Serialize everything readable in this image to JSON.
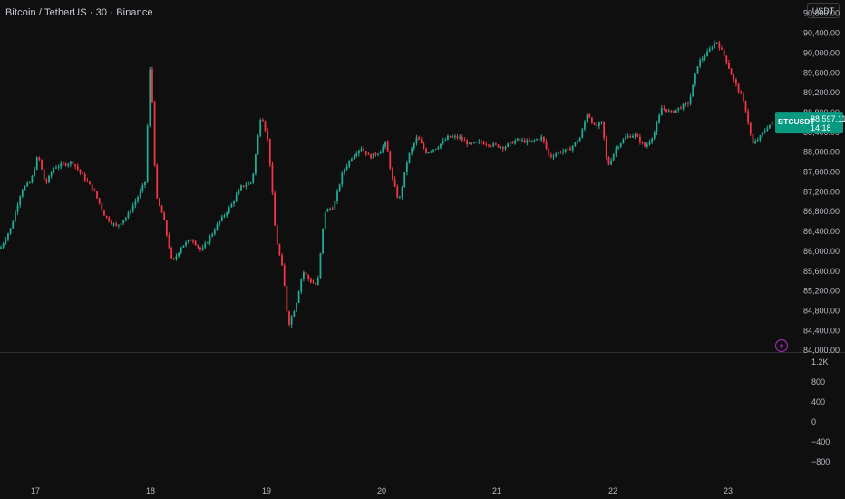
{
  "header": {
    "title": "Bitcoin / TetherUS · 30 · Binance",
    "currency": "USDT"
  },
  "price_badge": {
    "symbol": "BTCUSDT",
    "price": "88,597.11",
    "countdown": "14:18",
    "color": "#089981"
  },
  "colors": {
    "up": "#22ab94",
    "down": "#f23645",
    "background": "#0f0f0f",
    "alert_icon": "#9c27b0"
  },
  "icons": {
    "alert": "lightning-bolt-icon"
  },
  "chart_data": {
    "type": "candlestick",
    "symbol": "BTCUSDT",
    "interval": "30",
    "x_ticks": [
      "17",
      "18",
      "19",
      "20",
      "21",
      "22",
      "23"
    ],
    "price_ticks": [
      "90,800.00",
      "90,400.00",
      "90,000.00",
      "89,600.00",
      "89,200.00",
      "88,800.00",
      "88,400.00",
      "88,000.00",
      "87,600.00",
      "87,200.00",
      "86,800.00",
      "86,400.00",
      "86,000.00",
      "85,600.00",
      "85,200.00",
      "84,800.00",
      "84,400.00",
      "84,000.00"
    ],
    "volume_ticks": [
      "1.2K",
      "800",
      "400",
      "0",
      "−400",
      "−800"
    ],
    "price_range": [
      83930,
      91070
    ],
    "last_price": 88597.11,
    "path": [
      [
        0,
        86050
      ],
      [
        12,
        86470
      ],
      [
        24,
        87250
      ],
      [
        34,
        87400
      ],
      [
        42,
        87950
      ],
      [
        50,
        87350
      ],
      [
        60,
        87700
      ],
      [
        80,
        87800
      ],
      [
        92,
        87500
      ],
      [
        104,
        87200
      ],
      [
        116,
        86700
      ],
      [
        128,
        86500
      ],
      [
        140,
        86700
      ],
      [
        152,
        87100
      ],
      [
        160,
        87400
      ],
      [
        166,
        89950
      ],
      [
        172,
        87100
      ],
      [
        180,
        86700
      ],
      [
        190,
        85750
      ],
      [
        200,
        86100
      ],
      [
        212,
        86250
      ],
      [
        222,
        86000
      ],
      [
        232,
        86300
      ],
      [
        242,
        86600
      ],
      [
        254,
        86900
      ],
      [
        266,
        87300
      ],
      [
        278,
        87400
      ],
      [
        288,
        88800
      ],
      [
        296,
        88200
      ],
      [
        304,
        86300
      ],
      [
        312,
        85600
      ],
      [
        318,
        84500
      ],
      [
        326,
        84900
      ],
      [
        334,
        85600
      ],
      [
        342,
        85400
      ],
      [
        350,
        85300
      ],
      [
        358,
        86800
      ],
      [
        368,
        86900
      ],
      [
        378,
        87600
      ],
      [
        388,
        87900
      ],
      [
        398,
        88100
      ],
      [
        408,
        87900
      ],
      [
        418,
        88000
      ],
      [
        426,
        88200
      ],
      [
        432,
        87500
      ],
      [
        440,
        87000
      ],
      [
        450,
        87900
      ],
      [
        460,
        88300
      ],
      [
        470,
        88000
      ],
      [
        482,
        88100
      ],
      [
        494,
        88300
      ],
      [
        506,
        88300
      ],
      [
        518,
        88150
      ],
      [
        530,
        88200
      ],
      [
        542,
        88150
      ],
      [
        556,
        88100
      ],
      [
        570,
        88250
      ],
      [
        584,
        88200
      ],
      [
        598,
        88300
      ],
      [
        606,
        87900
      ],
      [
        616,
        88000
      ],
      [
        628,
        88050
      ],
      [
        640,
        88300
      ],
      [
        648,
        88800
      ],
      [
        656,
        88500
      ],
      [
        664,
        88600
      ],
      [
        670,
        87700
      ],
      [
        680,
        88100
      ],
      [
        690,
        88300
      ],
      [
        700,
        88350
      ],
      [
        712,
        88100
      ],
      [
        722,
        88400
      ],
      [
        730,
        88900
      ],
      [
        740,
        88800
      ],
      [
        750,
        88900
      ],
      [
        760,
        89000
      ],
      [
        770,
        89800
      ],
      [
        780,
        90000
      ],
      [
        790,
        90250
      ],
      [
        800,
        89900
      ],
      [
        808,
        89500
      ],
      [
        816,
        89200
      ],
      [
        822,
        88900
      ],
      [
        830,
        88150
      ],
      [
        838,
        88300
      ],
      [
        846,
        88500
      ],
      [
        852,
        88600
      ]
    ]
  }
}
